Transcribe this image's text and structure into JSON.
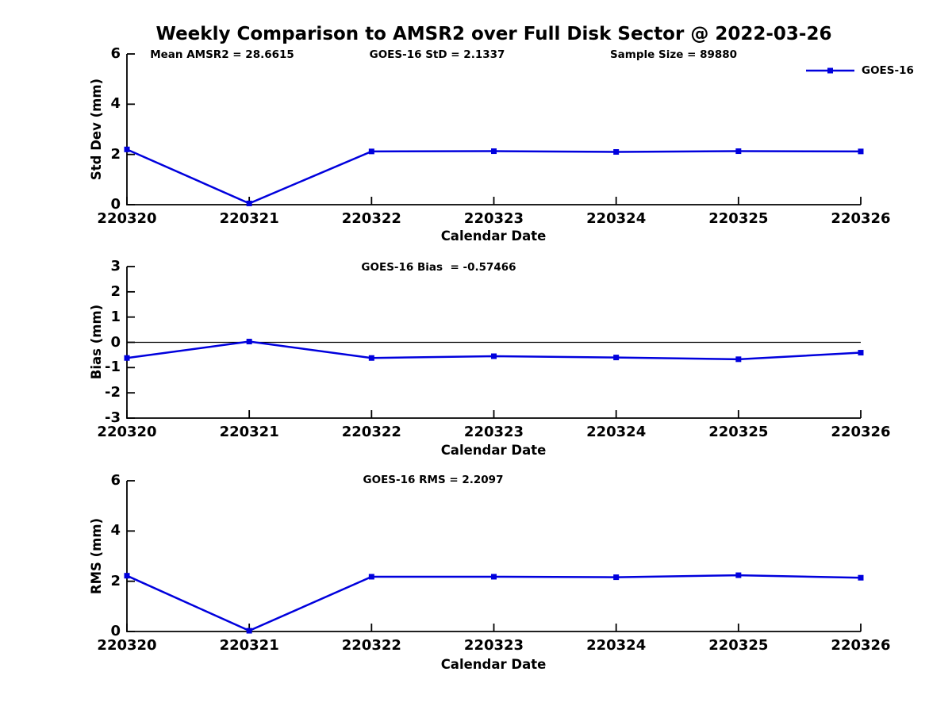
{
  "title": "Weekly Comparison to AMSR2 over Full Disk Sector @ 2022-03-26",
  "colors": {
    "line": "#0000dd",
    "axis": "#000000",
    "background": "#ffffff"
  },
  "legend": {
    "label": "GOES-16",
    "position": "top-right"
  },
  "chart_data": [
    {
      "type": "line",
      "name": "std-dev",
      "xlabel": "Calendar Date",
      "ylabel": "Std Dev (mm)",
      "categories": [
        "220320",
        "220321",
        "220322",
        "220323",
        "220324",
        "220325",
        "220326"
      ],
      "series": [
        {
          "name": "GOES-16",
          "color": "#0000dd",
          "marker": "square",
          "values": [
            2.2,
            0.05,
            2.12,
            2.13,
            2.1,
            2.13,
            2.12
          ]
        }
      ],
      "ylim": [
        0,
        6
      ],
      "yticks": [
        0,
        2,
        4,
        6
      ],
      "grid": false,
      "zero_line": false,
      "annotations": [
        {
          "text": "Mean AMSR2 = 28.6615"
        },
        {
          "text": "GOES-16 StD = 2.1337"
        },
        {
          "text": "Sample Size = 89880"
        }
      ]
    },
    {
      "type": "line",
      "name": "bias",
      "xlabel": "Calendar Date",
      "ylabel": "Bias (mm)",
      "categories": [
        "220320",
        "220321",
        "220322",
        "220323",
        "220324",
        "220325",
        "220326"
      ],
      "series": [
        {
          "name": "GOES-16",
          "color": "#0000dd",
          "marker": "square",
          "values": [
            -0.62,
            0.03,
            -0.62,
            -0.55,
            -0.6,
            -0.67,
            -0.41
          ]
        }
      ],
      "ylim": [
        -3,
        3
      ],
      "yticks": [
        -3,
        -2,
        -1,
        0,
        1,
        2,
        3
      ],
      "grid": false,
      "zero_line": true,
      "annotations": [
        {
          "text": "GOES-16 Bias  = -0.57466"
        }
      ]
    },
    {
      "type": "line",
      "name": "rms",
      "xlabel": "Calendar Date",
      "ylabel": "RMS (mm)",
      "categories": [
        "220320",
        "220321",
        "220322",
        "220323",
        "220324",
        "220325",
        "220326"
      ],
      "series": [
        {
          "name": "GOES-16",
          "color": "#0000dd",
          "marker": "square",
          "values": [
            2.22,
            0.03,
            2.18,
            2.18,
            2.16,
            2.24,
            2.14
          ]
        }
      ],
      "ylim": [
        0,
        6
      ],
      "yticks": [
        0,
        2,
        4,
        6
      ],
      "grid": false,
      "zero_line": false,
      "annotations": [
        {
          "text": "GOES-16 RMS = 2.2097"
        }
      ]
    }
  ]
}
